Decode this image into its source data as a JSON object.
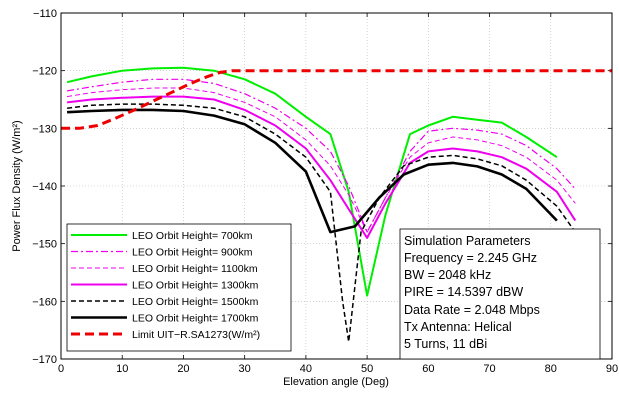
{
  "chart_data": {
    "type": "line",
    "xlabel": "Elevation angle (Deg)",
    "ylabel": "Power Flux Density (W/m²)",
    "xlim": [
      0,
      90
    ],
    "ylim": [
      -170,
      -110
    ],
    "xticks": [
      0,
      10,
      20,
      30,
      40,
      50,
      60,
      70,
      80,
      90
    ],
    "yticks": [
      -170,
      -160,
      -150,
      -140,
      -130,
      -120,
      -110
    ],
    "grid": true,
    "legend_position": "bottom-left",
    "series": [
      {
        "name": "LEO Orbit Height= 700km",
        "color": "#00ee00",
        "dash": "solid",
        "width": 2,
        "x": [
          1,
          5,
          10,
          15,
          20,
          25,
          30,
          35,
          40,
          44,
          47,
          50,
          53,
          57,
          60,
          64,
          68,
          72,
          76,
          81
        ],
        "y": [
          -122,
          -121,
          -120,
          -119.6,
          -119.5,
          -120,
          -121.5,
          -124,
          -128,
          -131,
          -141,
          -159,
          -145,
          -131,
          -129.5,
          -128,
          -128.5,
          -129,
          -131.5,
          -135
        ]
      },
      {
        "name": "LEO Orbit Height= 900km",
        "color": "#ee00ee",
        "dash": "dashdot",
        "width": 1.2,
        "x": [
          1,
          5,
          10,
          15,
          20,
          25,
          30,
          35,
          40,
          44,
          47,
          50,
          53,
          57,
          60,
          64,
          68,
          72,
          76,
          81,
          84
        ],
        "y": [
          -123.5,
          -122.8,
          -122,
          -121.5,
          -121.5,
          -122.2,
          -124,
          -126.5,
          -130,
          -134,
          -140,
          -148,
          -142,
          -134,
          -130.5,
          -130,
          -130.3,
          -131,
          -133,
          -137,
          -140.5
        ]
      },
      {
        "name": "LEO Orbit Height= 1100km",
        "color": "#ee00ee",
        "dash": "dashed",
        "width": 1,
        "x": [
          1,
          5,
          10,
          15,
          20,
          25,
          30,
          35,
          40,
          44,
          47,
          50,
          53,
          57,
          60,
          64,
          68,
          72,
          76,
          81,
          84
        ],
        "y": [
          -124.5,
          -123.8,
          -123.3,
          -123,
          -123,
          -123.8,
          -125.5,
          -128,
          -132,
          -136.5,
          -141.5,
          -148,
          -142,
          -135,
          -132.5,
          -131.5,
          -132,
          -133,
          -135,
          -139,
          -143
        ]
      },
      {
        "name": "LEO Orbit Height= 1300km",
        "color": "#ee00ee",
        "dash": "solid",
        "width": 2,
        "x": [
          1,
          5,
          10,
          15,
          20,
          25,
          30,
          35,
          40,
          44,
          47,
          50,
          53,
          57,
          60,
          64,
          68,
          72,
          76,
          81,
          84
        ],
        "y": [
          -125.5,
          -125,
          -124.7,
          -124.5,
          -124.5,
          -125,
          -126.8,
          -129.5,
          -133.5,
          -139,
          -144,
          -149,
          -143,
          -136,
          -134,
          -133.5,
          -134,
          -135,
          -137,
          -141,
          -146
        ]
      },
      {
        "name": "LEO Orbit Height= 1500km",
        "color": "#000000",
        "dash": "dashed",
        "width": 1.5,
        "x": [
          1,
          5,
          10,
          15,
          20,
          25,
          30,
          35,
          40,
          44,
          46,
          47,
          49,
          52,
          56,
          60,
          64,
          68,
          72,
          76,
          81,
          84
        ],
        "y": [
          -126.5,
          -126,
          -125.8,
          -125.8,
          -126,
          -126.5,
          -128,
          -131,
          -135,
          -141,
          -160,
          -167,
          -148,
          -142,
          -136.5,
          -135,
          -134.7,
          -135.3,
          -136.5,
          -139,
          -143.5,
          -148
        ]
      },
      {
        "name": "LEO Orbit Height= 1700km",
        "color": "#000000",
        "dash": "solid",
        "width": 2.6,
        "x": [
          1,
          5,
          10,
          15,
          20,
          25,
          30,
          35,
          40,
          44,
          48,
          52,
          56,
          60,
          64,
          68,
          72,
          76,
          81
        ],
        "y": [
          -127.2,
          -127,
          -126.8,
          -126.8,
          -127,
          -127.8,
          -129.3,
          -132.5,
          -137.5,
          -148,
          -147,
          -142,
          -138,
          -136.3,
          -136,
          -136.6,
          -138,
          -140.5,
          -146
        ]
      },
      {
        "name": "Limit UIT−R.SA1273(W/m²)",
        "color": "#ee0000",
        "dash": "heavydash",
        "width": 3,
        "x": [
          0,
          3,
          6,
          9,
          12,
          15,
          18,
          21,
          24,
          26,
          28,
          30,
          35,
          40,
          50,
          60,
          70,
          80,
          90
        ],
        "y": [
          -130,
          -130,
          -129.5,
          -128.2,
          -126.8,
          -125.3,
          -123.8,
          -122.3,
          -121,
          -120.3,
          -120,
          -120,
          -120,
          -120,
          -120,
          -120,
          -120,
          -120,
          -120
        ]
      }
    ],
    "annotation": {
      "lines": [
        "Simulation Parameters",
        "Frequency = 2.245 GHz",
        "BW = 2048 kHz",
        "PIRE = 14.5397 dBW",
        "Data Rate = 2.048 Mbps",
        "Tx Antenna: Helical",
        "5 Turns, 11 dBi"
      ]
    }
  }
}
